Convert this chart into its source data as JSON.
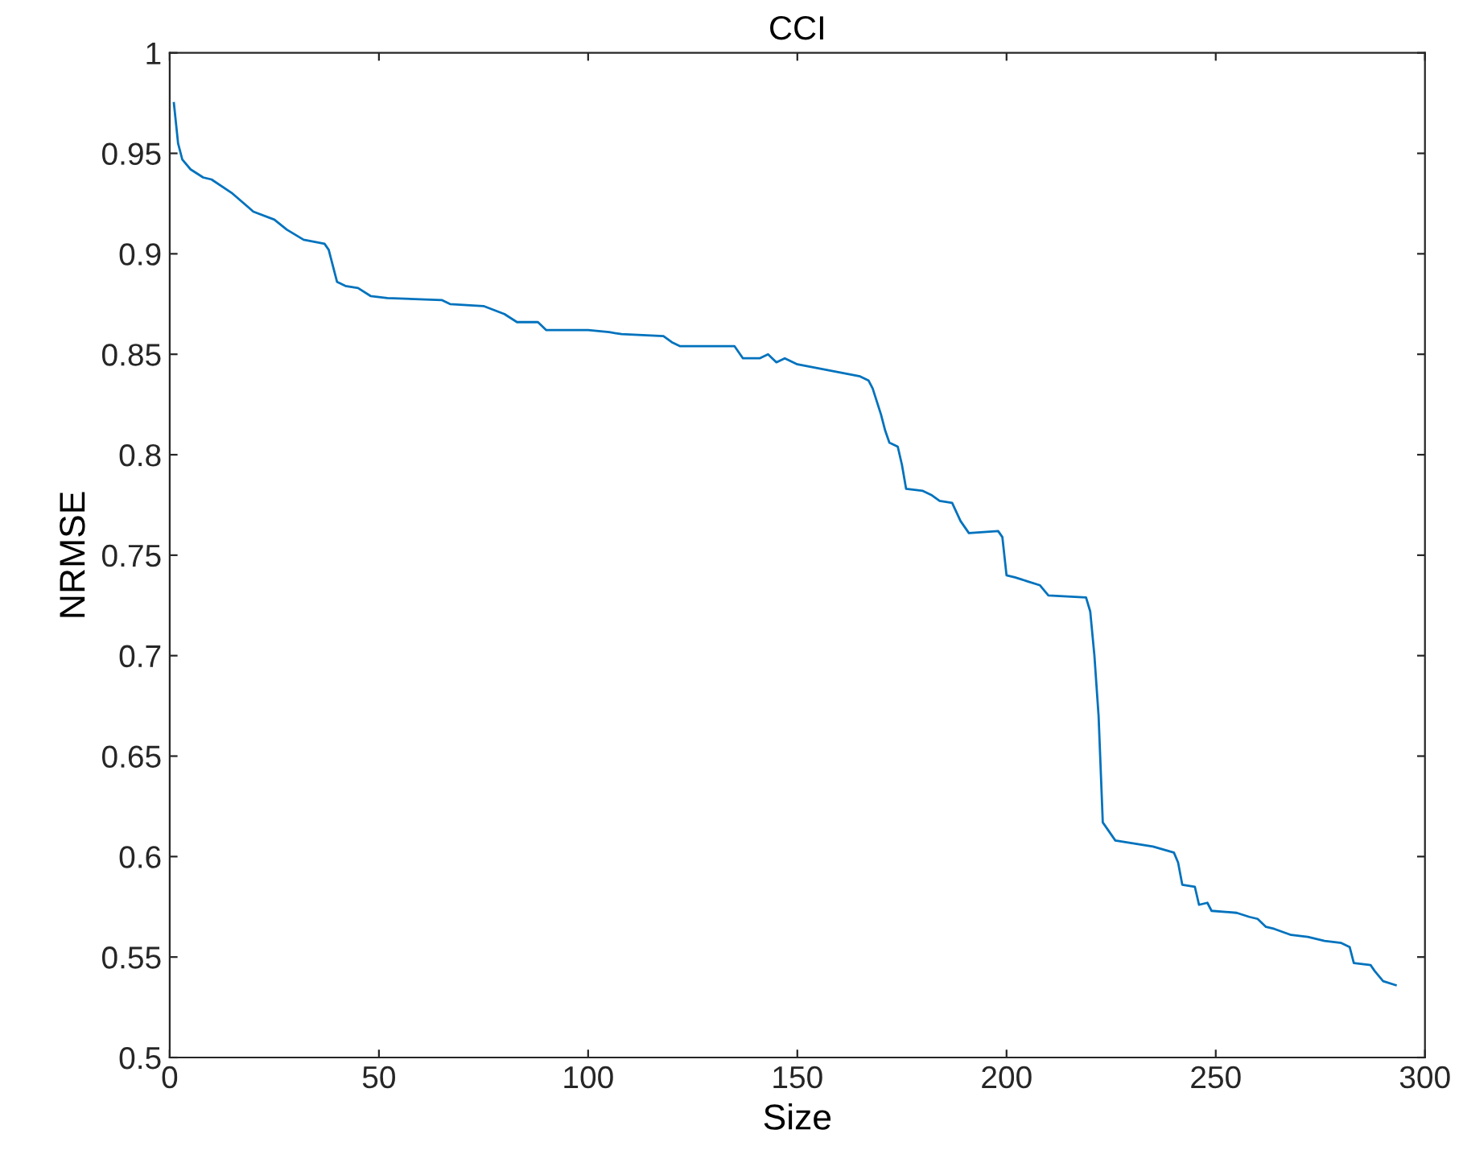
{
  "chart_data": {
    "type": "line",
    "title": "CCI",
    "xlabel": "Size",
    "ylabel": "NRMSE",
    "xlim": [
      0,
      300
    ],
    "ylim": [
      0.5,
      1
    ],
    "xticks": [
      0,
      50,
      100,
      150,
      200,
      250,
      300
    ],
    "yticks": [
      0.5,
      0.55,
      0.6,
      0.65,
      0.7,
      0.75,
      0.8,
      0.85,
      0.9,
      0.95,
      1
    ],
    "series": [
      {
        "color": "#0072bd",
        "x": [
          1,
          2,
          3,
          5,
          8,
          10,
          15,
          20,
          25,
          28,
          32,
          37,
          38,
          40,
          42,
          45,
          48,
          52,
          65,
          67,
          75,
          80,
          83,
          88,
          90,
          100,
          105,
          108,
          118,
          120,
          122,
          135,
          137,
          141,
          143,
          145,
          147,
          150,
          155,
          160,
          165,
          167,
          168,
          170,
          171,
          172,
          174,
          175,
          176,
          180,
          182,
          184,
          187,
          189,
          191,
          198,
          199,
          200,
          202,
          205,
          208,
          210,
          219,
          220,
          221,
          222,
          223,
          224,
          226,
          235,
          240,
          241,
          242,
          245,
          246,
          248,
          249,
          255,
          258,
          260,
          262,
          264,
          268,
          272,
          276,
          280,
          282,
          283,
          287,
          288,
          290,
          293
        ],
        "values": [
          0.975,
          0.955,
          0.947,
          0.942,
          0.938,
          0.937,
          0.93,
          0.921,
          0.917,
          0.912,
          0.907,
          0.905,
          0.902,
          0.886,
          0.884,
          0.883,
          0.879,
          0.878,
          0.877,
          0.875,
          0.874,
          0.87,
          0.866,
          0.866,
          0.862,
          0.862,
          0.861,
          0.86,
          0.859,
          0.856,
          0.854,
          0.854,
          0.848,
          0.848,
          0.85,
          0.846,
          0.848,
          0.845,
          0.843,
          0.841,
          0.839,
          0.837,
          0.833,
          0.82,
          0.812,
          0.806,
          0.804,
          0.795,
          0.783,
          0.782,
          0.78,
          0.777,
          0.776,
          0.767,
          0.761,
          0.762,
          0.759,
          0.74,
          0.739,
          0.737,
          0.735,
          0.73,
          0.729,
          0.722,
          0.7,
          0.67,
          0.617,
          0.614,
          0.608,
          0.605,
          0.602,
          0.597,
          0.586,
          0.585,
          0.576,
          0.577,
          0.573,
          0.572,
          0.57,
          0.569,
          0.565,
          0.564,
          0.561,
          0.56,
          0.558,
          0.557,
          0.555,
          0.547,
          0.546,
          0.543,
          0.538,
          0.536
        ]
      }
    ]
  }
}
